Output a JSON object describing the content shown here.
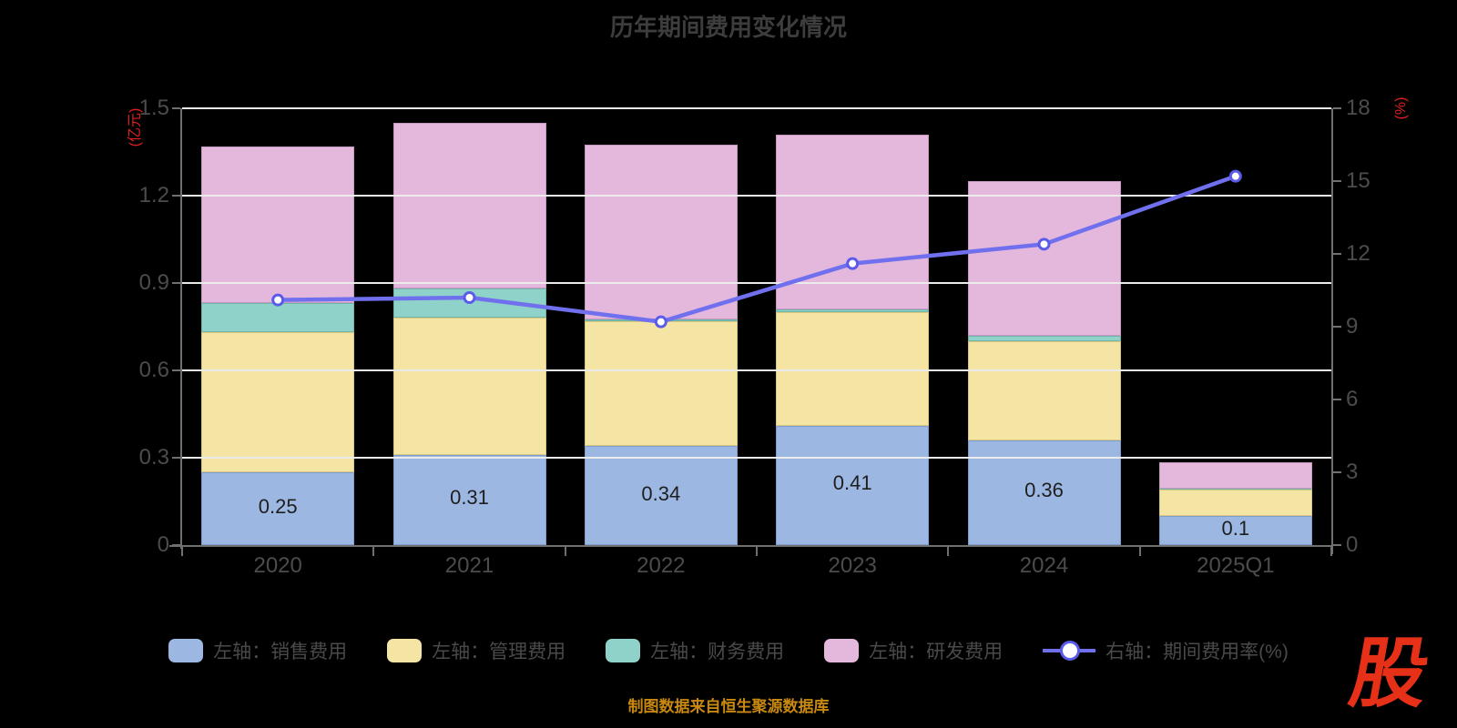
{
  "title": "历年期间费用变化情况",
  "footer": {
    "source_note": "制图数据来自恒生聚源数据库"
  },
  "logo": {
    "char": "股"
  },
  "chart_data": {
    "type": "bar",
    "subtype": "stacked-bars-with-line",
    "title": "历年期间费用变化情况",
    "categories": [
      "2020",
      "2021",
      "2022",
      "2023",
      "2024",
      "2025Q1"
    ],
    "series": [
      {
        "name": "左轴：销售费用",
        "type": "bar",
        "axis": "left",
        "color": "#9cb8e2",
        "border_color": "#7e9cce",
        "values": [
          0.25,
          0.31,
          0.34,
          0.41,
          0.36,
          0.1
        ]
      },
      {
        "name": "左轴：管理费用",
        "type": "bar",
        "axis": "left",
        "color": "#f4e5a5",
        "border_color": "#d8c77f",
        "values": [
          0.48,
          0.47,
          0.43,
          0.39,
          0.34,
          0.09
        ]
      },
      {
        "name": "左轴：财务费用",
        "type": "bar",
        "axis": "left",
        "color": "#8fd2c9",
        "border_color": "#6fb5a9",
        "values": [
          0.1,
          0.1,
          0.005,
          0.01,
          0.02,
          0.004
        ]
      },
      {
        "name": "左轴：研发费用",
        "type": "bar",
        "axis": "left",
        "color": "#e4b8dc",
        "border_color": "#c897c2",
        "values": [
          0.54,
          0.57,
          0.6,
          0.6,
          0.53,
          0.09
        ]
      },
      {
        "name": "右轴：期间费用率(%)",
        "type": "line",
        "axis": "right",
        "color": "#7070ee",
        "marker": "circle-white-fill",
        "marker_ring": "#5b5bea",
        "values": [
          10.1,
          10.2,
          9.2,
          11.6,
          12.4,
          15.2
        ]
      }
    ],
    "bar_labels": [
      "0.25",
      "0.31",
      "0.34",
      "0.41",
      "0.36",
      "0.1"
    ],
    "left_axis": {
      "unit": "(亿元)",
      "min": 0,
      "max": 1.5,
      "tick_labels": [
        "0",
        "0.3",
        "0.6",
        "0.9",
        "1.2",
        "1.5"
      ]
    },
    "right_axis": {
      "unit": "(%)",
      "min": 0,
      "max": 18,
      "tick_labels": [
        "0",
        "3",
        "6",
        "9",
        "12",
        "15",
        "18"
      ]
    },
    "grid": true,
    "legend_position": "bottom",
    "background": "#000000"
  }
}
